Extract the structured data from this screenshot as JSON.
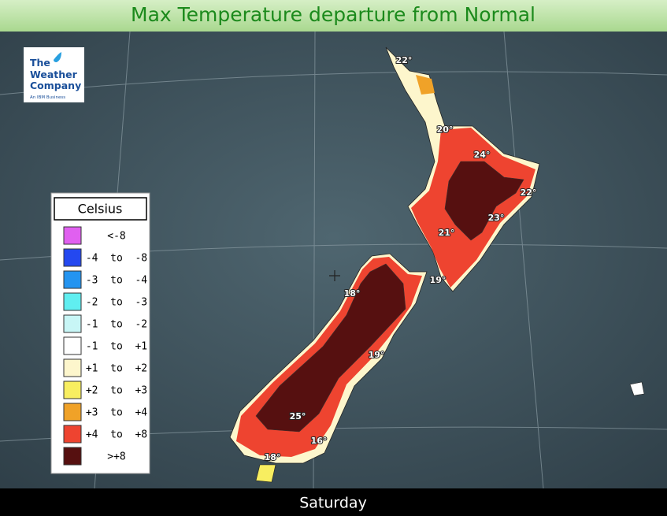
{
  "header": {
    "title": "Max Temperature departure from Normal"
  },
  "logo": {
    "lines": [
      "The",
      "Weather",
      "Company"
    ],
    "tagline": "An IBM Business"
  },
  "legend": {
    "title": "Celsius",
    "items": [
      {
        "label": "<-8",
        "color": "#e060f0"
      },
      {
        "label": "-4  to  -8",
        "color": "#2448f0"
      },
      {
        "label": "-3  to  -4",
        "color": "#2494f0"
      },
      {
        "label": "-2  to  -3",
        "color": "#60eef0"
      },
      {
        "label": "-1  to  -2",
        "color": "#c8f6f6"
      },
      {
        "label": "-1  to  +1",
        "color": "#ffffff"
      },
      {
        "label": "+1  to  +2",
        "color": "#fdf6cc"
      },
      {
        "label": "+2  to  +3",
        "color": "#f8ee60"
      },
      {
        "label": "+3  to  +4",
        "color": "#f0a228"
      },
      {
        "label": "+4  to  +8",
        "color": "#ee4430"
      },
      {
        "label": ">+8",
        "color": "#561010"
      }
    ]
  },
  "map_labels": [
    "22°",
    "20°",
    "24°",
    "22°",
    "23°",
    "21°",
    "19°",
    "18°",
    "19°",
    "25°",
    "16°",
    "18°"
  ],
  "footer": {
    "day": "Saturday"
  }
}
